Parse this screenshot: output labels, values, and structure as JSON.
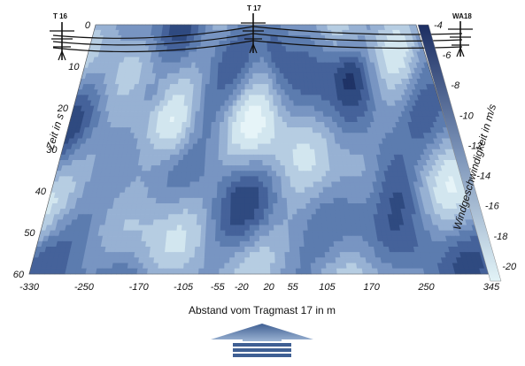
{
  "chart_data": {
    "type": "heatmap",
    "title": "",
    "towers": [
      "T 16",
      "T 17",
      "WA18"
    ],
    "xlabel": "Abstand vom Tragmast 17 in m",
    "ylabel": "Zeit in s",
    "colorbar_label": "Windgeschwindigkeit in m/s",
    "x_ticks": [
      "-330",
      "-250",
      "-170",
      "-105",
      "-55",
      "-20",
      "20",
      "55",
      "105",
      "170",
      "250",
      "345"
    ],
    "y_ticks": [
      "0",
      "10",
      "20",
      "30",
      "40",
      "50",
      "60"
    ],
    "color_ticks": [
      "-4",
      "-6",
      "-8",
      "-10",
      "-12",
      "-14",
      "-16",
      "-18",
      "-20"
    ],
    "xlim": [
      -330,
      345
    ],
    "ylim": [
      0,
      60
    ],
    "zlim": [
      -21,
      -4
    ],
    "colors": {
      "low": "#d8f0f5",
      "high": "#1c2e62",
      "contour": "#2d3b5a"
    }
  }
}
